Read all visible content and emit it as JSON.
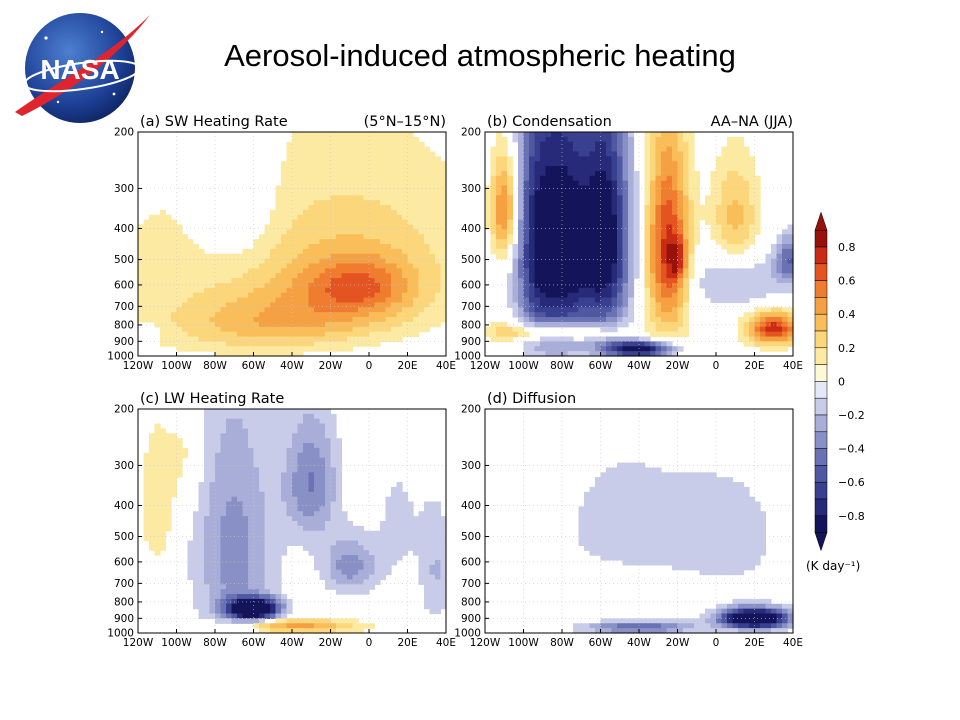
{
  "slide": {
    "title": "Aerosol-induced atmospheric heating",
    "logo_text": "NASA"
  },
  "chart_data": {
    "type": "heatmap",
    "suptitle_region": "(5°N–15°N)",
    "suptitle_season": "AA–NA (JJA)",
    "x_tick_labels": [
      "120W",
      "100W",
      "80W",
      "60W",
      "40W",
      "20W",
      "0",
      "20E",
      "40E"
    ],
    "y_tick_labels": [
      "200",
      "300",
      "400",
      "500",
      "600",
      "700",
      "800",
      "900",
      "1000"
    ],
    "y_tick_values": [
      200,
      300,
      400,
      500,
      600,
      700,
      800,
      900,
      1000
    ],
    "x_tick_values": [
      -120,
      -100,
      -80,
      -60,
      -40,
      -20,
      0,
      20,
      40
    ],
    "xlim": [
      -120,
      40
    ],
    "ylim": [
      1000,
      200
    ],
    "colorbar": {
      "levels": [
        -0.9,
        -0.8,
        -0.7,
        -0.6,
        -0.5,
        -0.4,
        -0.3,
        -0.2,
        -0.1,
        0.1,
        0.2,
        0.3,
        0.4,
        0.5,
        0.6,
        0.7,
        0.8,
        0.9
      ],
      "tick_labels": [
        "0.8",
        "0.6",
        "0.4",
        "0.2",
        "0",
        "-0.2",
        "-0.4",
        "-0.6",
        "-0.8"
      ],
      "unit": "(K day⁻¹)",
      "colors": [
        "#14145a",
        "#262a78",
        "#3a4090",
        "#5058a2",
        "#6a72b4",
        "#8890c6",
        "#a8aed8",
        "#c8cce8",
        "#e6e8f6",
        "#fdf8d6",
        "#fdeaa2",
        "#fcd67a",
        "#f9bd5a",
        "#f6a044",
        "#f07c30",
        "#e45420",
        "#c82c14",
        "#98120c"
      ]
    },
    "panels": [
      {
        "id": "a",
        "title": "(a) SW Heating Rate",
        "blobs": [
          {
            "x": -10,
            "p": 650,
            "sx": 34,
            "sp": 150,
            "a": 0.32
          },
          {
            "x": -5,
            "p": 600,
            "sx": 18,
            "sp": 80,
            "a": 0.26
          },
          {
            "x": -55,
            "p": 800,
            "sx": 35,
            "sp": 120,
            "a": 0.28
          },
          {
            "x": -10,
            "p": 380,
            "sx": 55,
            "sp": 190,
            "a": 0.18
          },
          {
            "x": -110,
            "p": 600,
            "sx": 38,
            "sp": 280,
            "a": 0.1
          },
          {
            "x": -70,
            "p": 330,
            "sx": 14,
            "sp": 110,
            "a": -0.22
          },
          {
            "x": -118,
            "p": 840,
            "sx": 8,
            "sp": 40,
            "a": -0.14
          }
        ]
      },
      {
        "id": "b",
        "title": "(b) Condensation",
        "blobs": [
          {
            "x": -110,
            "p": 350,
            "sx": 5,
            "sp": 90,
            "a": 0.55
          },
          {
            "x": -80,
            "p": 460,
            "sx": 11,
            "sp": 290,
            "a": -0.95
          },
          {
            "x": -57,
            "p": 440,
            "sx": 9,
            "sp": 260,
            "a": -0.88
          },
          {
            "x": -95,
            "p": 450,
            "sx": 7,
            "sp": 300,
            "a": -0.45
          },
          {
            "x": -25,
            "p": 480,
            "sx": 8,
            "sp": 230,
            "a": 0.75
          },
          {
            "x": -20,
            "p": 500,
            "sx": 3,
            "sp": 50,
            "a": 0.35
          },
          {
            "x": 10,
            "p": 380,
            "sx": 9,
            "sp": 110,
            "a": 0.35
          },
          {
            "x": 30,
            "p": 820,
            "sx": 10,
            "sp": 70,
            "a": 0.75
          },
          {
            "x": -85,
            "p": 840,
            "sx": 25,
            "sp": 40,
            "a": 0.45
          },
          {
            "x": -40,
            "p": 950,
            "sx": 12,
            "sp": 40,
            "a": -0.95
          },
          {
            "x": 10,
            "p": 580,
            "sx": 20,
            "sp": 90,
            "a": -0.25
          },
          {
            "x": 38,
            "p": 500,
            "sx": 5,
            "sp": 60,
            "a": -0.45
          }
        ]
      },
      {
        "id": "c",
        "title": "(c) LW Heating Rate",
        "blobs": [
          {
            "x": -60,
            "p": 840,
            "sx": 9,
            "sp": 45,
            "a": -1.2
          },
          {
            "x": -70,
            "p": 560,
            "sx": 15,
            "sp": 330,
            "a": -0.35
          },
          {
            "x": -30,
            "p": 340,
            "sx": 10,
            "sp": 110,
            "a": -0.4
          },
          {
            "x": -10,
            "p": 620,
            "sx": 10,
            "sp": 90,
            "a": -0.35
          },
          {
            "x": -110,
            "p": 400,
            "sx": 7,
            "sp": 150,
            "a": 0.2
          },
          {
            "x": -40,
            "p": 950,
            "sx": 25,
            "sp": 35,
            "a": 0.45
          },
          {
            "x": -95,
            "p": 280,
            "sx": 6,
            "sp": 80,
            "a": 0.14
          },
          {
            "x": 35,
            "p": 650,
            "sx": 6,
            "sp": 200,
            "a": -0.2
          },
          {
            "x": 15,
            "p": 450,
            "sx": 10,
            "sp": 180,
            "a": -0.12
          }
        ]
      },
      {
        "id": "d",
        "title": "(d) Diffusion",
        "blobs": [
          {
            "x": 20,
            "p": 900,
            "sx": 12,
            "sp": 45,
            "a": -1.3
          },
          {
            "x": -50,
            "p": 470,
            "sx": 30,
            "sp": 220,
            "a": -0.13
          },
          {
            "x": -40,
            "p": 960,
            "sx": 20,
            "sp": 30,
            "a": -0.5
          },
          {
            "x": -70,
            "p": 760,
            "sx": 30,
            "sp": 80,
            "a": 0.13
          },
          {
            "x": 10,
            "p": 500,
            "sx": 25,
            "sp": 200,
            "a": -0.12
          }
        ]
      }
    ]
  }
}
